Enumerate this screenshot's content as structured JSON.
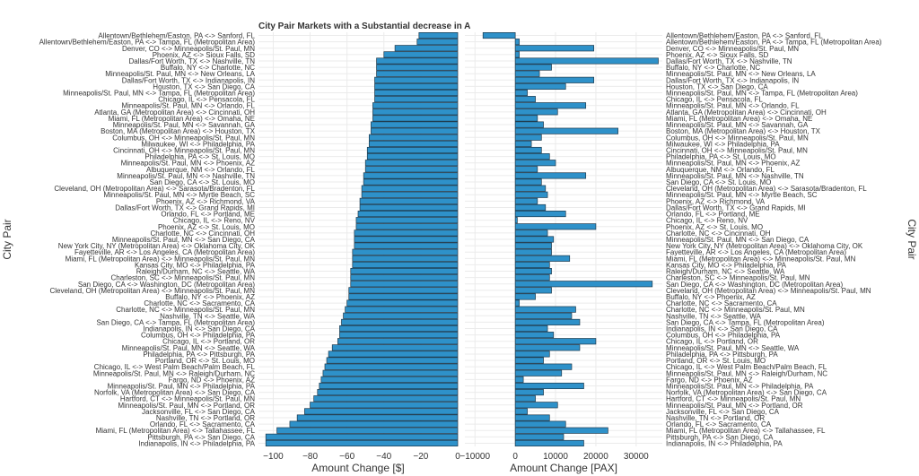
{
  "chart_data": [
    {
      "type": "bar",
      "orientation": "horizontal",
      "title": "City Pair Markets with a Substantial decrease in A",
      "xlabel": "Amount Change [$]",
      "ylabel": "City Pair",
      "xlim": [
        -108,
        0
      ],
      "xticks": [
        -100,
        -80,
        -60,
        -40,
        -20,
        0
      ],
      "grid": true,
      "categories": [
        "Allentown/Bethlehem/Easton, PA <-> Sanford, FL",
        "Allentown/Bethlehem/Easton, PA <-> Tampa, FL (Metropolitan Area)",
        "Denver, CO <-> Minneapolis/St. Paul, MN",
        "Phoenix, AZ <-> Sioux Falls, SD",
        "Dallas/Fort Worth, TX <-> Nashville, TN",
        "Buffalo, NY <-> Charlotte, NC",
        "Minneapolis/St. Paul, MN <-> New Orleans, LA",
        "Dallas/Fort Worth, TX <-> Indianapolis, IN",
        "Houston, TX <-> San Diego, CA",
        "Minneapolis/St. Paul, MN <-> Tampa, FL (Metropolitan Area)",
        "Chicago, IL <-> Pensacola, FL",
        "Minneapolis/St. Paul, MN <-> Orlando, FL",
        "Atlanta, GA (Metropolitan Area) <-> Cincinnati, OH",
        "Miami, FL (Metropolitan Area) <-> Omaha, NE",
        "Minneapolis/St. Paul, MN <-> Savannah, GA",
        "Boston, MA (Metropolitan Area) <-> Houston, TX",
        "Columbus, OH <-> Minneapolis/St. Paul, MN",
        "Milwaukee, WI <-> Philadelphia, PA",
        "Cincinnati, OH <-> Minneapolis/St. Paul, MN",
        "Philadelphia, PA <-> St. Louis, MO",
        "Minneapolis/St. Paul, MN <-> Phoenix, AZ",
        "Albuquerque, NM <-> Orlando, FL",
        "Minneapolis/St. Paul, MN <-> Nashville, TN",
        "San Diego, CA <-> St. Louis, MO",
        "Cleveland, OH (Metropolitan Area) <-> Sarasota/Bradenton, FL",
        "Minneapolis/St. Paul, MN <-> Myrtle Beach, SC",
        "Phoenix, AZ <-> Richmond, VA",
        "Dallas/Fort Worth, TX <-> Grand Rapids, MI",
        "Orlando, FL <-> Portland, ME",
        "Chicago, IL <-> Reno, NV",
        "Phoenix, AZ <-> St. Louis, MO",
        "Charlotte, NC <-> Cincinnati, OH",
        "Minneapolis/St. Paul, MN <-> San Diego, CA",
        "New York City, NY (Metropolitan Area) <-> Oklahoma City, OK",
        "Fayetteville, AR <-> Los Angeles, CA (Metropolitan Area)",
        "Miami, FL (Metropolitan Area) <-> Minneapolis/St. Paul, MN",
        "Kansas City, MO <-> Philadelphia, PA",
        "Raleigh/Durham, NC <-> Seattle, WA",
        "Charleston, SC <-> Minneapolis/St. Paul, MN",
        "San Diego, CA <-> Washington, DC (Metropolitan Area)",
        "Cleveland, OH (Metropolitan Area) <-> Minneapolis/St. Paul, MN",
        "Buffalo, NY <-> Phoenix, AZ",
        "Charlotte, NC <-> Sacramento, CA",
        "Charlotte, NC <-> Minneapolis/St. Paul, MN",
        "Nashville, TN <-> Seattle, WA",
        "San Diego, CA <-> Tampa, FL (Metropolitan Area)",
        "Indianapolis, IN <-> San Diego, CA",
        "Columbus, OH <-> Philadelphia, PA",
        "Chicago, IL <-> Portland, OR",
        "Minneapolis/St. Paul, MN <-> Seattle, WA",
        "Philadelphia, PA <-> Pittsburgh, PA",
        "Portland, OR <-> St. Louis, MO",
        "Chicago, IL <-> West Palm Beach/Palm Beach, FL",
        "Minneapolis/St. Paul, MN <-> Raleigh/Durham, NC",
        "Fargo, ND <-> Phoenix, AZ",
        "Minneapolis/St. Paul, MN <-> Philadelphia, PA",
        "Norfolk, VA (Metropolitan Area) <-> San Diego, CA",
        "Hartford, CT <-> Minneapolis/St. Paul, MN",
        "Minneapolis/St. Paul, MN <-> Portland, OR",
        "Jacksonville, FL <-> San Diego, CA",
        "Nashville, TN <-> Portland, OR",
        "Orlando, FL <-> Sacramento, CA",
        "Miami, FL (Metropolitan Area) <-> Tallahassee, FL",
        "Pittsburgh, PA <-> San Diego, CA",
        "Indianapolis, IN <-> Philadelphia, PA"
      ],
      "values": [
        -21,
        -22,
        -34,
        -40,
        -44,
        -44,
        -44,
        -45,
        -45,
        -45,
        -45,
        -46,
        -46,
        -46,
        -47,
        -47,
        -48,
        -48,
        -49,
        -49,
        -50,
        -50,
        -51,
        -51,
        -52,
        -52,
        -53,
        -53,
        -54,
        -55,
        -55,
        -56,
        -56,
        -56,
        -57,
        -57,
        -57,
        -58,
        -58,
        -58,
        -59,
        -59,
        -60,
        -61,
        -62,
        -63,
        -64,
        -64,
        -65,
        -68,
        -70,
        -71,
        -72,
        -73,
        -74,
        -75,
        -76,
        -78,
        -80,
        -83,
        -87,
        -91,
        -98,
        -104,
        -104
      ]
    },
    {
      "type": "bar",
      "orientation": "horizontal",
      "xlabel": "Amount Change [PAX]",
      "ylabel": "City Pair",
      "xlim": [
        -12500,
        36500
      ],
      "xticks": [
        -10000,
        0,
        10000,
        20000,
        30000
      ],
      "grid": true,
      "categories": [
        "Allentown/Bethlehem/Easton, PA <-> Sanford, FL",
        "Allentown/Bethlehem/Easton, PA <-> Tampa, FL (Metropolitan Area)",
        "Denver, CO <-> Minneapolis/St. Paul, MN",
        "Phoenix, AZ <-> Sioux Falls, SD",
        "Dallas/Fort Worth, TX <-> Nashville, TN",
        "Buffalo, NY <-> Charlotte, NC",
        "Minneapolis/St. Paul, MN <-> New Orleans, LA",
        "Dallas/Fort Worth, TX <-> Indianapolis, IN",
        "Houston, TX <-> San Diego, CA",
        "Minneapolis/St. Paul, MN <-> Tampa, FL (Metropolitan Area)",
        "Chicago, IL <-> Pensacola, FL",
        "Minneapolis/St. Paul, MN <-> Orlando, FL",
        "Atlanta, GA (Metropolitan Area) <-> Cincinnati, OH",
        "Miami, FL (Metropolitan Area) <-> Omaha, NE",
        "Minneapolis/St. Paul, MN <-> Savannah, GA",
        "Boston, MA (Metropolitan Area) <-> Houston, TX",
        "Columbus, OH <-> Minneapolis/St. Paul, MN",
        "Milwaukee, WI <-> Philadelphia, PA",
        "Cincinnati, OH <-> Minneapolis/St. Paul, MN",
        "Philadelphia, PA <-> St. Louis, MO",
        "Minneapolis/St. Paul, MN <-> Phoenix, AZ",
        "Albuquerque, NM <-> Orlando, FL",
        "Minneapolis/St. Paul, MN <-> Nashville, TN",
        "San Diego, CA <-> St. Louis, MO",
        "Cleveland, OH (Metropolitan Area) <-> Sarasota/Bradenton, FL",
        "Minneapolis/St. Paul, MN <-> Myrtle Beach, SC",
        "Phoenix, AZ <-> Richmond, VA",
        "Dallas/Fort Worth, TX <-> Grand Rapids, MI",
        "Orlando, FL <-> Portland, ME",
        "Chicago, IL <-> Reno, NV",
        "Phoenix, AZ <-> St. Louis, MO",
        "Charlotte, NC <-> Cincinnati, OH",
        "Minneapolis/St. Paul, MN <-> San Diego, CA",
        "New York City, NY (Metropolitan Area) <-> Oklahoma City, OK",
        "Fayetteville, AR <-> Los Angeles, CA (Metropolitan Area)",
        "Miami, FL (Metropolitan Area) <-> Minneapolis/St. Paul, MN",
        "Kansas City, MO <-> Philadelphia, PA",
        "Raleigh/Durham, NC <-> Seattle, WA",
        "Charleston, SC <-> Minneapolis/St. Paul, MN",
        "San Diego, CA <-> Washington, DC (Metropolitan Area)",
        "Cleveland, OH (Metropolitan Area) <-> Minneapolis/St. Paul, MN",
        "Buffalo, NY <-> Phoenix, AZ",
        "Charlotte, NC <-> Sacramento, CA",
        "Charlotte, NC <-> Minneapolis/St. Paul, MN",
        "Nashville, TN <-> Seattle, WA",
        "San Diego, CA <-> Tampa, FL (Metropolitan Area)",
        "Indianapolis, IN <-> San Diego, CA",
        "Columbus, OH <-> Philadelphia, PA",
        "Chicago, IL <-> Portland, OR",
        "Minneapolis/St. Paul, MN <-> Seattle, WA",
        "Philadelphia, PA <-> Pittsburgh, PA",
        "Portland, OR <-> St. Louis, MO",
        "Chicago, IL <-> West Palm Beach/Palm Beach, FL",
        "Minneapolis/St. Paul, MN <-> Raleigh/Durham, NC",
        "Fargo, ND <-> Phoenix, AZ",
        "Minneapolis/St. Paul, MN <-> Philadelphia, PA",
        "Norfolk, VA (Metropolitan Area) <-> San Diego, CA",
        "Hartford, CT <-> Minneapolis/St. Paul, MN",
        "Minneapolis/St. Paul, MN <-> Portland, OR",
        "Jacksonville, FL <-> San Diego, CA",
        "Nashville, TN <-> Portland, OR",
        "Orlando, FL <-> Sacramento, CA",
        "Miami, FL (Metropolitan Area) <-> Tallahassee, FL",
        "Pittsburgh, PA <-> San Diego, CA",
        "Indianapolis, IN <-> Philadelphia, PA"
      ],
      "values": [
        -8000,
        1000,
        19500,
        1000,
        35500,
        9000,
        6000,
        19500,
        12500,
        3000,
        5000,
        17500,
        10500,
        5500,
        7000,
        25500,
        6500,
        4000,
        6500,
        8500,
        10000,
        5500,
        17500,
        6500,
        7500,
        8000,
        5500,
        7500,
        12500,
        500,
        20000,
        8000,
        9500,
        9000,
        9000,
        13500,
        8500,
        9000,
        8500,
        34000,
        9000,
        5000,
        1000,
        15000,
        14000,
        16000,
        8000,
        9500,
        20000,
        16000,
        8500,
        7000,
        14000,
        11500,
        2000,
        17000,
        7000,
        5000,
        10500,
        3000,
        8500,
        12500,
        23000,
        12000,
        17000
      ]
    }
  ]
}
